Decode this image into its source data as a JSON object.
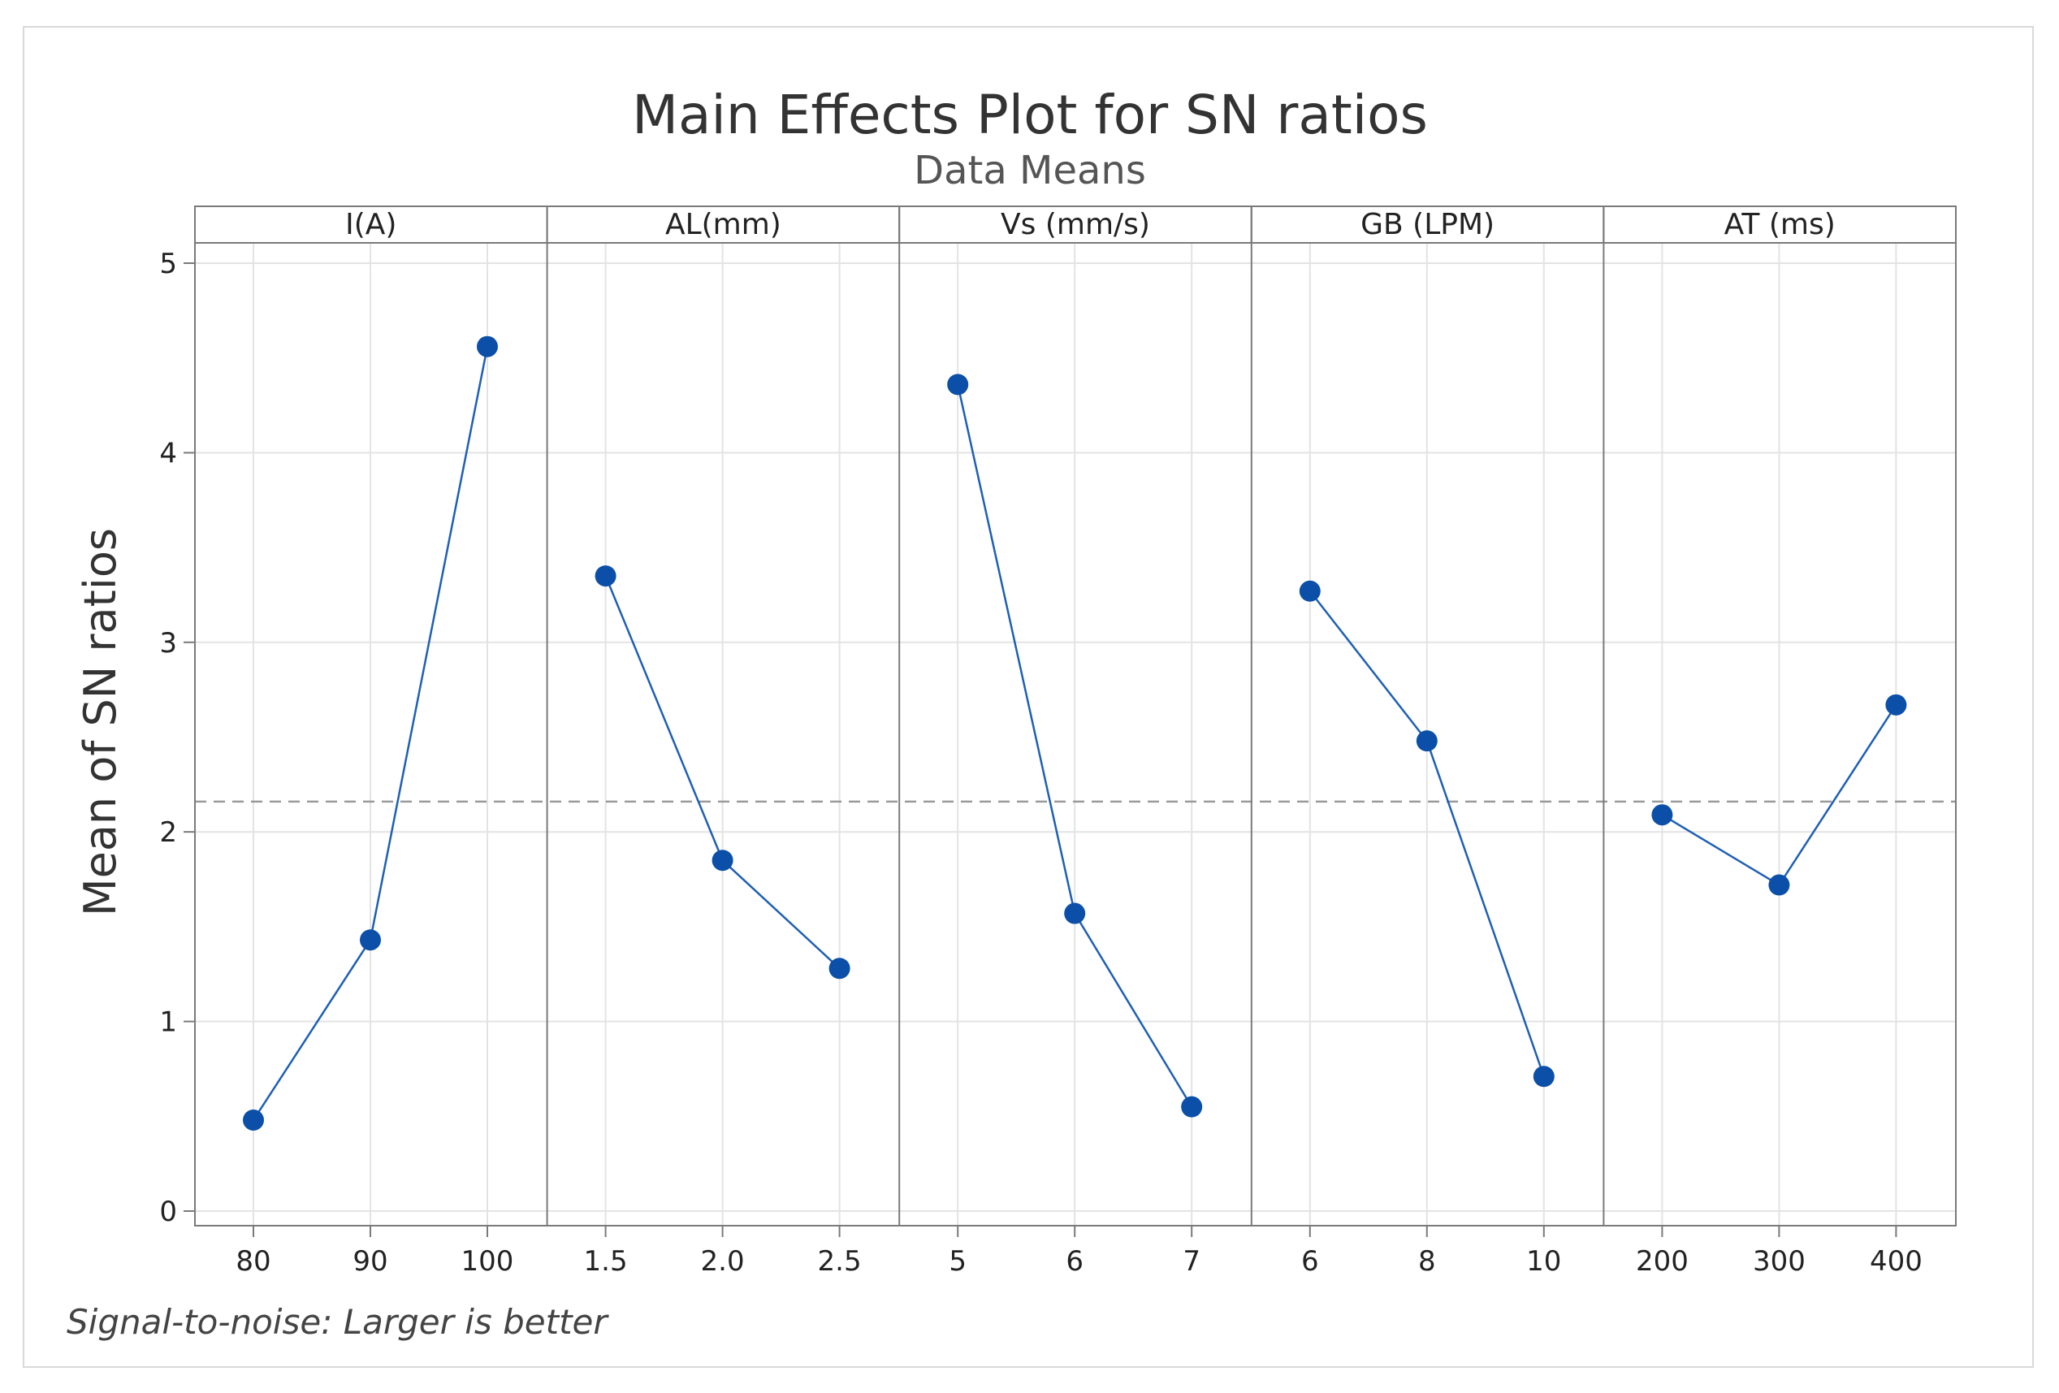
{
  "chart_data": {
    "type": "line",
    "title": "Main Effects Plot for SN ratios",
    "subtitle": "Data Means",
    "ylabel": "Mean of SN ratios",
    "ylim": [
      0,
      5
    ],
    "yticks": [
      "0",
      "1",
      "2",
      "3",
      "4",
      "5"
    ],
    "reference_line": 2.16,
    "grid": true,
    "footnote": "Signal-to-noise: Larger is better",
    "colors": {
      "series": "#1f5fb4",
      "marker": "#0b4fa8",
      "reference": "#9a9a9a",
      "grid": "#e3e3e3",
      "border": "#7a7a7a"
    },
    "panels": [
      {
        "factor": "I(A)",
        "levels": [
          "80",
          "90",
          "100"
        ],
        "values": [
          0.48,
          1.43,
          4.56
        ]
      },
      {
        "factor": "AL(mm)",
        "levels": [
          "1.5",
          "2.0",
          "2.5"
        ],
        "values": [
          3.35,
          1.85,
          1.28
        ]
      },
      {
        "factor": "Vs (mm/s)",
        "levels": [
          "5",
          "6",
          "7"
        ],
        "values": [
          4.36,
          1.57,
          0.55
        ]
      },
      {
        "factor": "GB (LPM)",
        "levels": [
          "6",
          "8",
          "10"
        ],
        "values": [
          3.27,
          2.48,
          0.71
        ]
      },
      {
        "factor": "AT (ms)",
        "levels": [
          "200",
          "300",
          "400"
        ],
        "values": [
          2.09,
          1.72,
          2.67
        ]
      }
    ]
  }
}
